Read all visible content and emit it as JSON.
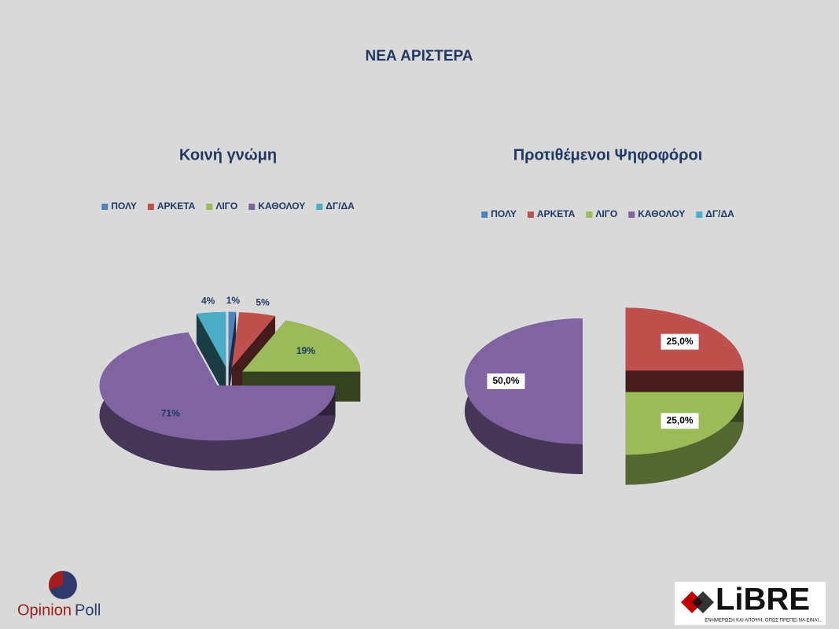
{
  "title": "ΝΕΑ ΑΡΙΣΤΕΡΑ",
  "chart_data": [
    {
      "type": "pie",
      "title": "Κοινή γνώμη",
      "categories": [
        "ΠΟΛΥ",
        "ΑΡΚΕΤΑ",
        "ΛΙΓΟ",
        "ΚΑΘΟΛΟΥ",
        "ΔΓ/ΔΑ"
      ],
      "colors": [
        "#4f81bd",
        "#c0504d",
        "#9bbb59",
        "#8064a2",
        "#4bacc6"
      ],
      "values": [
        1,
        5,
        19,
        71,
        4
      ],
      "value_labels": [
        "1%",
        "5%",
        "19%",
        "71%",
        "4%"
      ],
      "legend": "top"
    },
    {
      "type": "pie",
      "title": "Προτιθέμενοι Ψηφοφόροι",
      "categories": [
        "ΠΟΛΥ",
        "ΑΡΚΕΤΑ",
        "ΛΙΓΟ",
        "ΚΑΘΟΛΟΥ",
        "ΔΓ/ΔΑ"
      ],
      "colors": [
        "#4f81bd",
        "#c0504d",
        "#9bbb59",
        "#8064a2",
        "#4bacc6"
      ],
      "values": [
        0,
        25,
        25,
        50,
        0
      ],
      "value_labels": [
        null,
        "25,0%",
        "25,0%",
        "50,0%",
        null
      ],
      "legend": "top"
    }
  ],
  "logos": {
    "left": [
      "Opinion",
      "Poll"
    ],
    "right": "LiBRE",
    "tagline": "ΕΝΗΜΕΡΩΣΗ ΚΑΙ ΑΠΟΨΗ, ΟΠΩΣ ΠΡΕΠΕΙ ΝΑ ΕΙΝΑΙ..."
  }
}
